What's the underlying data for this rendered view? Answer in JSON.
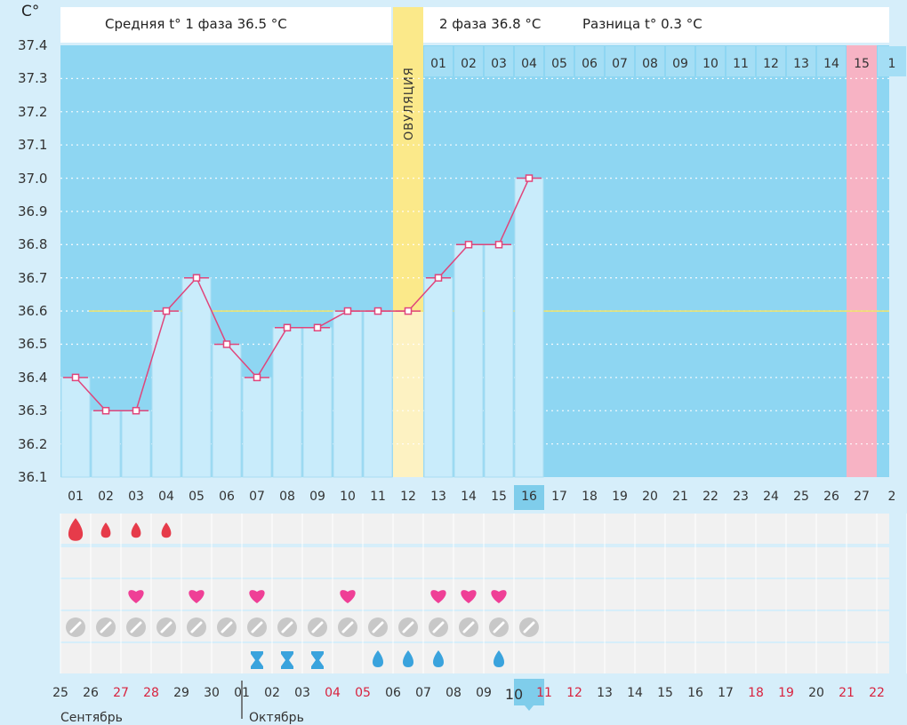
{
  "header": {
    "unit": "C°",
    "phase1": "Средняя t° 1 фаза 36.5 °C",
    "phase2": "2 фаза 36.8 °C",
    "diff": "Разница t° 0.3 °C",
    "ovulation_label": "ОВУЛЯЦИЯ"
  },
  "colors": {
    "bg": "#d6eefa",
    "chart_bg": "#8ed6f2",
    "bar_fill": "#c9ecfb",
    "bar_stroke": "#a9ddf3",
    "line": "#e0457b",
    "coverline": "#f0e36a",
    "ovulation": "#fbe98a",
    "ovulation_light": "#fdf2c2",
    "menses_band": "#f7b3c4",
    "today": "#7fcdeb",
    "grid_dot": "#ffffff",
    "heart": "#ef3f96",
    "blood": "#e63b4a",
    "drop_blue": "#3aa3dd",
    "pill": "#c8c8c8",
    "red_text": "#d8233f"
  },
  "chart_data": {
    "type": "line",
    "title": "",
    "xlabel": "",
    "ylabel": "C°",
    "ylim": [
      36.1,
      37.4
    ],
    "yticks": [
      "37.4",
      "37.3",
      "37.2",
      "37.1",
      "37.0",
      "36.9",
      "36.8",
      "36.7",
      "36.6",
      "36.5",
      "36.4",
      "36.3",
      "36.2",
      "36.1"
    ],
    "coverline": 36.6,
    "cycle_days": [
      "01",
      "02",
      "03",
      "04",
      "05",
      "06",
      "07",
      "08",
      "09",
      "10",
      "11",
      "12",
      "13",
      "14",
      "15",
      "16",
      "17",
      "18",
      "19",
      "20",
      "21",
      "22",
      "23",
      "24",
      "25",
      "26",
      "27",
      "2"
    ],
    "values": [
      36.4,
      36.3,
      36.3,
      36.6,
      36.7,
      36.5,
      36.4,
      36.55,
      36.55,
      36.6,
      36.6,
      36.6,
      36.7,
      36.8,
      36.8,
      37.0
    ],
    "ovulation_day": "12",
    "today_cycle_day": "16",
    "luteal_days": [
      "01",
      "02",
      "03",
      "04",
      "05",
      "06",
      "07",
      "08",
      "09",
      "10",
      "11",
      "12",
      "13",
      "14",
      "15",
      "1"
    ],
    "luteal_highlight": "15",
    "menses_band_day": "27"
  },
  "symbols": {
    "blood": [
      {
        "day": "01",
        "size": "large"
      },
      {
        "day": "02",
        "size": "small"
      },
      {
        "day": "03",
        "size": "small"
      },
      {
        "day": "04",
        "size": "small"
      }
    ],
    "heart_days": [
      "03",
      "05",
      "07",
      "10",
      "13",
      "14",
      "15"
    ],
    "pill_days": [
      "01",
      "02",
      "03",
      "04",
      "05",
      "06",
      "07",
      "08",
      "09",
      "10",
      "11",
      "12",
      "13",
      "14",
      "15",
      "16"
    ],
    "discharge": [
      {
        "day": "07",
        "kind": "hourglass"
      },
      {
        "day": "08",
        "kind": "hourglass"
      },
      {
        "day": "09",
        "kind": "hourglass"
      },
      {
        "day": "11",
        "kind": "drop"
      },
      {
        "day": "12",
        "kind": "drop"
      },
      {
        "day": "13",
        "kind": "drop"
      },
      {
        "day": "15",
        "kind": "drop"
      }
    ]
  },
  "calendar": {
    "dates": [
      "25",
      "26",
      "27",
      "28",
      "29",
      "30",
      "01",
      "02",
      "03",
      "04",
      "05",
      "06",
      "07",
      "08",
      "09",
      "10",
      "11",
      "12",
      "13",
      "14",
      "15",
      "16",
      "17",
      "18",
      "19",
      "20",
      "21",
      "22"
    ],
    "red_dates": [
      "27",
      "28",
      "04",
      "05",
      "11",
      "12",
      "18",
      "19",
      "21",
      "22"
    ],
    "today_date": "10",
    "months": [
      {
        "label": "Сентябрь"
      },
      {
        "label": "Октябрь"
      }
    ]
  }
}
